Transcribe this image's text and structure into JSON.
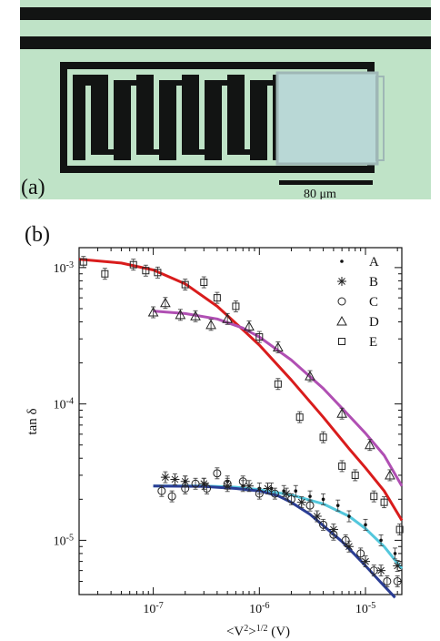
{
  "figure": {
    "panel_a_label": "(a)",
    "scale_bar_label": "80 μm",
    "panel_b_label": "(b)",
    "micrograph_colors": {
      "substrate": "#bfe3c7",
      "metal": "#121413",
      "capacitor": "#b9d8d6"
    }
  },
  "chart_data": {
    "type": "scatter",
    "title": "",
    "xlabel_parts": {
      "pre": "<V",
      "sup1": "2",
      "mid": ">",
      "sup2": "1/2",
      "post": " (V)"
    },
    "ylabel": "tan δ",
    "x_scale": "log",
    "y_scale": "log",
    "xlim": [
      2e-08,
      2.2e-05
    ],
    "ylim": [
      4e-06,
      0.0014
    ],
    "x_ticks": [
      {
        "value": 1e-07,
        "base": "10",
        "exp": "-7"
      },
      {
        "value": 1e-06,
        "base": "10",
        "exp": "-6"
      },
      {
        "value": 1e-05,
        "base": "10",
        "exp": "-5"
      }
    ],
    "y_ticks": [
      {
        "value": 1e-05,
        "base": "10",
        "exp": "-5"
      },
      {
        "value": 0.0001,
        "base": "10",
        "exp": "-4"
      },
      {
        "value": 0.001,
        "base": "10",
        "exp": "-3"
      }
    ],
    "legend": [
      "A",
      "B",
      "C",
      "D",
      "E"
    ],
    "legend_position": "top-right",
    "series": [
      {
        "name": "A",
        "marker": "dot",
        "x": [
          2e-07,
          3e-07,
          5e-07,
          7e-07,
          1e-06,
          1.3e-06,
          1.7e-06,
          2.2e-06,
          3e-06,
          4e-06,
          5.5e-06,
          7e-06,
          1e-05,
          1.4e-05,
          1.9e-05
        ],
        "y": [
          2.7e-05,
          2.6e-05,
          2.7e-05,
          2.5e-05,
          2.4e-05,
          2.4e-05,
          2.3e-05,
          2.3e-05,
          2.1e-05,
          2e-05,
          1.8e-05,
          1.5e-05,
          1.3e-05,
          1e-05,
          8e-06
        ]
      },
      {
        "name": "B",
        "marker": "asterisk",
        "x": [
          1.3e-07,
          1.6e-07,
          2e-07,
          3e-07,
          5e-07,
          8e-07,
          1.2e-06,
          1.8e-06,
          2.5e-06,
          3.5e-06,
          5e-06,
          7e-06,
          1e-05,
          1.4e-05,
          2e-05
        ],
        "y": [
          2.9e-05,
          2.8e-05,
          2.7e-05,
          2.6e-05,
          2.5e-05,
          2.5e-05,
          2.4e-05,
          2.2e-05,
          1.9e-05,
          1.5e-05,
          1.2e-05,
          9e-06,
          7e-06,
          6e-06,
          6.5e-06
        ]
      },
      {
        "name": "C",
        "marker": "circle",
        "x": [
          1.2e-07,
          1.5e-07,
          2e-07,
          2.5e-07,
          3.2e-07,
          4e-07,
          5e-07,
          7e-07,
          1e-06,
          1.4e-06,
          2e-06,
          3e-06,
          4e-06,
          5e-06,
          6.5e-06,
          9e-06,
          1.2e-05,
          1.6e-05,
          2e-05
        ],
        "y": [
          2.3e-05,
          2.1e-05,
          2.4e-05,
          2.6e-05,
          2.4e-05,
          3.1e-05,
          2.6e-05,
          2.7e-05,
          2.2e-05,
          2.2e-05,
          2e-05,
          1.8e-05,
          1.3e-05,
          1.1e-05,
          1e-05,
          8e-06,
          6e-06,
          5e-06,
          5e-06
        ]
      },
      {
        "name": "D",
        "marker": "triangle",
        "x": [
          1e-07,
          1.3e-07,
          1.8e-07,
          2.5e-07,
          3.5e-07,
          5e-07,
          8e-07,
          1.5e-06,
          3e-06,
          6e-06,
          1.1e-05,
          1.7e-05
        ],
        "y": [
          0.00047,
          0.00055,
          0.00045,
          0.00044,
          0.00038,
          0.00042,
          0.00037,
          0.00026,
          0.00016,
          8.5e-05,
          5e-05,
          3e-05
        ]
      },
      {
        "name": "E",
        "marker": "square",
        "x": [
          2.2e-08,
          3.5e-08,
          6.5e-08,
          8.5e-08,
          1.1e-07,
          2e-07,
          3e-07,
          4e-07,
          6e-07,
          1e-06,
          1.5e-06,
          2.4e-06,
          4e-06,
          6e-06,
          8e-06,
          1.2e-05,
          1.5e-05,
          2.1e-05
        ],
        "y": [
          0.0011,
          0.0009,
          0.00105,
          0.00095,
          0.00092,
          0.00075,
          0.00078,
          0.0006,
          0.00052,
          0.00031,
          0.00014,
          8e-05,
          5.7e-05,
          3.5e-05,
          3e-05,
          2.1e-05,
          1.9e-05,
          1.2e-05
        ]
      }
    ],
    "fit_curves": [
      {
        "color": "#d91c1c",
        "x": [
          2e-08,
          5e-08,
          1e-07,
          2e-07,
          4e-07,
          7e-07,
          1e-06,
          2e-06,
          4e-06,
          7e-06,
          1e-05,
          1.5e-05,
          2.2e-05
        ],
        "y": [
          0.00115,
          0.00108,
          0.00096,
          0.00076,
          0.00052,
          0.00035,
          0.00027,
          0.00015,
          8e-05,
          4.7e-05,
          3.4e-05,
          2.3e-05,
          1.4e-05
        ]
      },
      {
        "color": "#b04fb3",
        "x": [
          1e-07,
          2e-07,
          4e-07,
          7e-07,
          1e-06,
          2e-06,
          4e-06,
          7e-06,
          1e-05,
          1.5e-05,
          2.2e-05
        ],
        "y": [
          0.00048,
          0.00046,
          0.00042,
          0.00036,
          0.00031,
          0.00021,
          0.00013,
          8.2e-05,
          6.1e-05,
          4.2e-05,
          2.5e-05
        ]
      },
      {
        "color": "#53c7dc",
        "x": [
          1e-07,
          3e-07,
          6e-07,
          1e-06,
          2e-06,
          4e-06,
          7e-06,
          1e-05,
          1.5e-05,
          2.2e-05
        ],
        "y": [
          2.5e-05,
          2.5e-05,
          2.45e-05,
          2.35e-05,
          2.15e-05,
          1.85e-05,
          1.5e-05,
          1.22e-05,
          9e-06,
          6.2e-06
        ]
      },
      {
        "color": "#2a3d94",
        "x": [
          1e-07,
          3e-07,
          6e-07,
          1e-06,
          1.5e-06,
          2e-06,
          3e-06,
          4e-06,
          6e-06,
          8e-06,
          1e-05,
          1.4e-05,
          1.9e-05
        ],
        "y": [
          2.5e-05,
          2.48e-05,
          2.4e-05,
          2.3e-05,
          2.12e-05,
          1.9e-05,
          1.55e-05,
          1.28e-05,
          9.8e-06,
          7.8e-06,
          6.5e-06,
          4.9e-06,
          3.8e-06
        ]
      }
    ]
  }
}
